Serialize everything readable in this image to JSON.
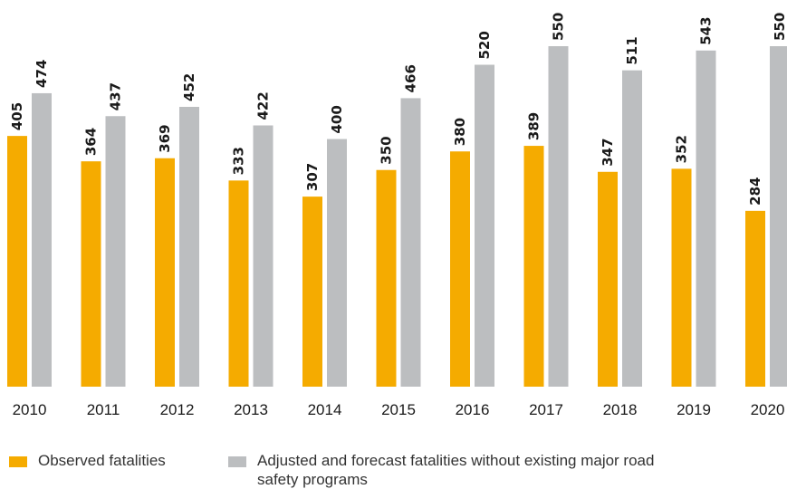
{
  "chart_data": {
    "type": "bar",
    "categories": [
      "2010",
      "2011",
      "2012",
      "2013",
      "2014",
      "2015",
      "2016",
      "2017",
      "2018",
      "2019",
      "2020"
    ],
    "series": [
      {
        "name": "Observed fatalities",
        "values": [
          405,
          364,
          369,
          333,
          307,
          350,
          380,
          389,
          347,
          352,
          284
        ]
      },
      {
        "name": "Adjusted and forecast fatalities without existing major road safety programs",
        "values": [
          474,
          437,
          452,
          422,
          400,
          466,
          520,
          550,
          511,
          543,
          550
        ]
      }
    ],
    "ylim": [
      0,
      550
    ],
    "grid": false,
    "legend_placement": "bottom-left",
    "colors": {
      "observed": "#f5ab00",
      "forecast": "#bcbec0"
    }
  },
  "legend": {
    "observed_label": "Observed fatalities",
    "forecast_label": "Adjusted and forecast fatalities without existing major road safety programs"
  }
}
